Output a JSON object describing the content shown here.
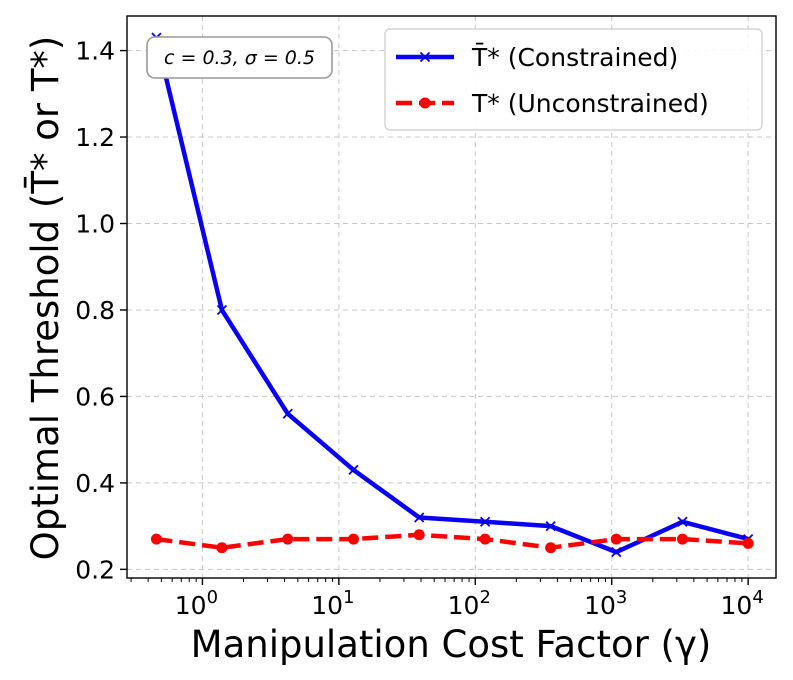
{
  "chart_data": {
    "type": "line",
    "xscale": "log",
    "xlabel": "Manipulation Cost Factor (γ)",
    "ylabel": "Optimal Threshold (T̄* or T*)",
    "xlim": [
      0.28,
      16000
    ],
    "ylim": [
      0.18,
      1.48
    ],
    "x_ticks": [
      {
        "value": 1,
        "base": "10",
        "exp": "0"
      },
      {
        "value": 10,
        "base": "10",
        "exp": "1"
      },
      {
        "value": 100,
        "base": "10",
        "exp": "2"
      },
      {
        "value": 1000,
        "base": "10",
        "exp": "3"
      },
      {
        "value": 10000,
        "base": "10",
        "exp": "4"
      }
    ],
    "y_ticks": [
      {
        "value": 0.2,
        "label": "0.2"
      },
      {
        "value": 0.4,
        "label": "0.4"
      },
      {
        "value": 0.6,
        "label": "0.6"
      },
      {
        "value": 0.8,
        "label": "0.8"
      },
      {
        "value": 1.0,
        "label": "1.0"
      },
      {
        "value": 1.2,
        "label": "1.2"
      },
      {
        "value": 1.4,
        "label": "1.4"
      }
    ],
    "grid": true,
    "annotation": "c = 0.3, σ = 0.5",
    "legend_position": "top-right",
    "x": [
      0.46,
      1.39,
      4.22,
      12.8,
      38.8,
      118,
      357,
      1080,
      3300,
      10000
    ],
    "series": [
      {
        "name": "T̄* (Constrained)",
        "color": "#0a00f2",
        "marker": "x",
        "style": "solid",
        "values": [
          1.43,
          0.8,
          0.56,
          0.43,
          0.32,
          0.31,
          0.3,
          0.24,
          0.31,
          0.27
        ]
      },
      {
        "name": "T* (Unconstrained)",
        "color": "#ff0000",
        "marker": "o",
        "style": "dashed",
        "values": [
          0.27,
          0.25,
          0.27,
          0.27,
          0.28,
          0.27,
          0.25,
          0.27,
          0.27,
          0.26
        ]
      }
    ]
  }
}
